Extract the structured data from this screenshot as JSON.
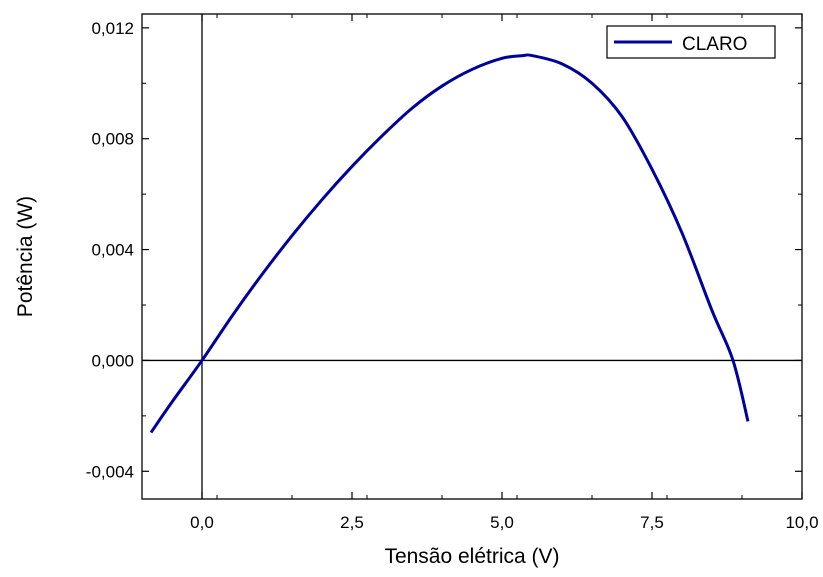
{
  "chart_data": {
    "type": "line",
    "title": "",
    "xlabel": "Tensão elétrica (V)",
    "ylabel": "Potência (W)",
    "xlim": [
      -1.0,
      10.0
    ],
    "ylim": [
      -0.005,
      0.0125
    ],
    "x_ticks": [
      0.0,
      2.5,
      5.0,
      7.5,
      10.0
    ],
    "x_tick_labels": [
      "0,0",
      "2,5",
      "5,0",
      "7,5",
      "10,0"
    ],
    "y_ticks": [
      -0.004,
      0.0,
      0.004,
      0.008,
      0.012
    ],
    "y_tick_labels": [
      "-0,004",
      "0,000",
      "0,004",
      "0,008",
      "0,012"
    ],
    "grid": false,
    "zero_lines": true,
    "legend_position": "top-right",
    "series": [
      {
        "name": "CLARO",
        "color": "#00009c",
        "x": [
          -0.85,
          -0.5,
          0.0,
          0.5,
          1.0,
          1.5,
          2.0,
          2.5,
          3.0,
          3.5,
          4.0,
          4.5,
          5.0,
          5.35,
          5.5,
          6.0,
          6.5,
          7.0,
          7.5,
          8.0,
          8.5,
          8.85,
          9.1
        ],
        "y": [
          -0.0026,
          -0.0015,
          0.0,
          0.0016,
          0.0031,
          0.0045,
          0.0058,
          0.007,
          0.0081,
          0.0091,
          0.0099,
          0.0105,
          0.0109,
          0.011,
          0.011,
          0.0107,
          0.01,
          0.0088,
          0.0069,
          0.0046,
          0.0018,
          0.0,
          -0.0022
        ]
      }
    ]
  }
}
